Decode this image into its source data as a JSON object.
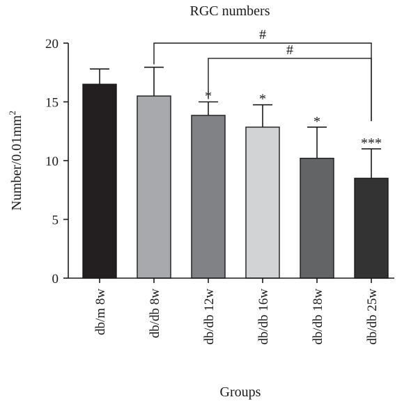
{
  "chart_data": {
    "type": "bar",
    "title": "RGC numbers",
    "xlabel": "Groups",
    "ylabel": "Number/0.01mm",
    "ylabel_sup": "2",
    "ylim": [
      0,
      20
    ],
    "yticks": [
      0,
      5,
      10,
      15,
      20
    ],
    "grid": false,
    "categories": [
      "db/m 8w",
      "db/db 8w",
      "db/db 12w",
      "db/db 16w",
      "db/db 18w",
      "db/db 25w"
    ],
    "values": [
      16.5,
      15.5,
      13.85,
      12.85,
      10.2,
      8.5
    ],
    "errors": [
      1.3,
      2.45,
      1.15,
      1.9,
      2.65,
      2.5
    ],
    "colors": [
      "#231f20",
      "#a7a9ac",
      "#808285",
      "#d1d3d4",
      "#636466",
      "#333333"
    ],
    "significance": [
      "",
      "",
      "*",
      "*",
      "*",
      "***"
    ],
    "brackets": [
      {
        "from": "db/db 8w",
        "to": "db/db 25w",
        "label": "#",
        "level": 20
      },
      {
        "from": "db/db 12w",
        "to": "db/db 25w",
        "label": "#",
        "level": 18.7
      }
    ]
  }
}
